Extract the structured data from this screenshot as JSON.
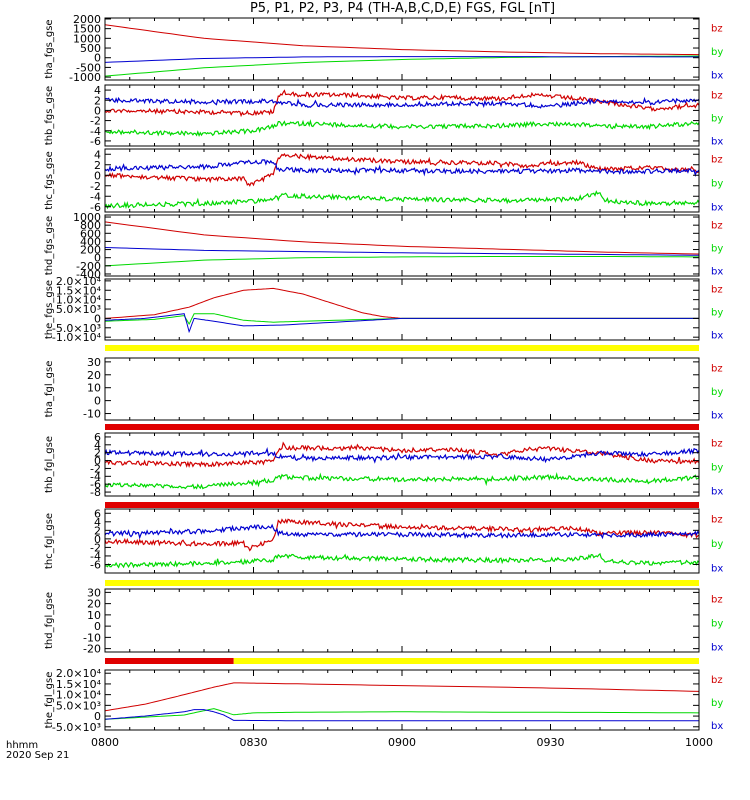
{
  "title": "P5, P1, P2, P3, P4 (TH-A,B,C,D,E) FGS, FGL [nT]",
  "footer": {
    "label": "hhmm",
    "date": "2020 Sep 21"
  },
  "colors": {
    "bz": "#d00000",
    "by": "#00d800",
    "bx": "#0000d0",
    "flag_yellow": "#ffff00",
    "flag_red": "#e00000"
  },
  "chart_data": {
    "type": "line",
    "x_ticks": [
      "0800",
      "0830",
      "0900",
      "0930",
      "1000"
    ],
    "xlim": [
      "08:00",
      "10:00"
    ],
    "legend": [
      "bz",
      "by",
      "bx"
    ],
    "panels": [
      {
        "ylabel": "tha_fgs_gse",
        "yticks": [
          "-1000",
          "-500",
          "0",
          "500",
          "1000",
          "1500",
          "2000"
        ],
        "ytick_values": [
          -1000,
          -500,
          0,
          500,
          1000,
          1500,
          2000
        ],
        "ylim": [
          -1150,
          2050
        ],
        "series": [
          {
            "name": "bz",
            "x": [
              0,
              20,
              40,
              60,
              80,
              100,
              120
            ],
            "y": [
              1700,
              1000,
              620,
              420,
              300,
              210,
              160
            ]
          },
          {
            "name": "by",
            "x": [
              0,
              20,
              40,
              60,
              80,
              100,
              120
            ],
            "y": [
              -950,
              -520,
              -250,
              -90,
              10,
              60,
              90
            ]
          },
          {
            "name": "bx",
            "x": [
              0,
              20,
              40,
              60,
              80,
              100,
              120
            ],
            "y": [
              -240,
              -40,
              40,
              60,
              60,
              50,
              40
            ]
          }
        ]
      },
      {
        "ylabel": "thb_fgs_gse",
        "yticks": [
          "-6",
          "-4",
          "-2",
          "0",
          "2",
          "4"
        ],
        "ytick_values": [
          -6,
          -4,
          -2,
          0,
          2,
          4
        ],
        "ylim": [
          -7,
          5
        ],
        "series": [
          {
            "name": "bz",
            "x": [
              0,
              30,
              34,
              35,
              36,
              37,
              50,
              60,
              70,
              80,
              85,
              90,
              100,
              110,
              120
            ],
            "y": [
              0,
              -0.5,
              -0.3,
              2.5,
              3.8,
              3.2,
              3.0,
              2.4,
              2.6,
              2.3,
              3.0,
              2.8,
              1.8,
              0.3,
              1.0
            ]
          },
          {
            "name": "by",
            "x": [
              0,
              20,
              30,
              34,
              35,
              40,
              60,
              80,
              90,
              100,
              110,
              120
            ],
            "y": [
              -4.2,
              -4.6,
              -4.0,
              -3.2,
              -2.6,
              -2.6,
              -3.2,
              -3.0,
              -2.6,
              -3.0,
              -3.2,
              -2.4
            ]
          },
          {
            "name": "bx",
            "x": [
              0,
              20,
              30,
              34,
              35,
              40,
              60,
              80,
              90,
              100,
              110,
              120
            ],
            "y": [
              2.0,
              1.7,
              1.8,
              1.9,
              1.6,
              1.0,
              1.2,
              1.4,
              0.8,
              2.0,
              1.5,
              2.2
            ]
          }
        ]
      },
      {
        "ylabel": "thc_fgs_gse",
        "yticks": [
          "-6",
          "-4",
          "-2",
          "0",
          "2",
          "4"
        ],
        "ytick_values": [
          -6,
          -4,
          -2,
          0,
          2,
          4
        ],
        "ylim": [
          -7,
          5
        ],
        "series": [
          {
            "name": "bz",
            "x": [
              0,
              20,
              28,
              29,
              34,
              35,
              36,
              50,
              60,
              80,
              85,
              90,
              95,
              100,
              110,
              120
            ],
            "y": [
              0,
              -0.8,
              -0.6,
              -2.0,
              0.2,
              3.2,
              3.8,
              3.0,
              2.6,
              2.3,
              1.8,
              2.2,
              2.5,
              1.2,
              1.4,
              0.8
            ]
          },
          {
            "name": "by",
            "x": [
              0,
              20,
              28,
              34,
              35,
              40,
              60,
              80,
              95,
              100,
              101,
              110,
              120
            ],
            "y": [
              -5.8,
              -5.4,
              -5.0,
              -4.7,
              -3.8,
              -4.0,
              -4.6,
              -4.8,
              -4.6,
              -3.2,
              -4.8,
              -5.4,
              -5.2
            ]
          },
          {
            "name": "bx",
            "x": [
              0,
              20,
              28,
              34,
              35,
              40,
              60,
              80,
              95,
              100,
              110,
              120
            ],
            "y": [
              1.2,
              1.6,
              2.4,
              2.6,
              1.2,
              0.9,
              0.9,
              0.7,
              0.9,
              0.7,
              0.8,
              1.0
            ]
          }
        ]
      },
      {
        "ylabel": "thd_fgs_gse",
        "yticks": [
          "-400",
          "-200",
          "0",
          "200",
          "400",
          "600",
          "800",
          "1000"
        ],
        "ytick_values": [
          -400,
          -200,
          0,
          200,
          400,
          600,
          800,
          1000
        ],
        "ylim": [
          -450,
          1050
        ],
        "series": [
          {
            "name": "bz",
            "x": [
              0,
              20,
              40,
              60,
              80,
              100,
              120
            ],
            "y": [
              880,
              560,
              390,
              280,
              210,
              140,
              90
            ]
          },
          {
            "name": "by",
            "x": [
              0,
              20,
              40,
              60,
              80,
              100,
              120
            ],
            "y": [
              -200,
              -60,
              0,
              20,
              30,
              30,
              20
            ]
          },
          {
            "name": "bx",
            "x": [
              0,
              20,
              40,
              60,
              80,
              100,
              120
            ],
            "y": [
              250,
              180,
              150,
              120,
              100,
              80,
              60
            ]
          }
        ]
      },
      {
        "ylabel": "the_fgs_gse",
        "yticks": [
          "-1.0×10⁴",
          "-5.0×10³",
          "0",
          "5.0×10³",
          "1.0×10⁴",
          "1.5×10⁴",
          "2.0×10⁴"
        ],
        "ytick_values": [
          -10000,
          -5000,
          0,
          5000,
          10000,
          15000,
          20000
        ],
        "ylim": [
          -11500,
          21000
        ],
        "series": [
          {
            "name": "bz",
            "x": [
              0,
              10,
              17,
              22,
              28,
              34,
              40,
              46,
              52,
              56,
              60,
              120
            ],
            "y": [
              0,
              2000,
              6000,
              11000,
              15000,
              16000,
              13000,
              8000,
              3000,
              1000,
              0,
              0
            ]
          },
          {
            "name": "by",
            "x": [
              0,
              10,
              16,
              17,
              18,
              22,
              28,
              34,
              40,
              60,
              120
            ],
            "y": [
              -1500,
              -500,
              1500,
              -3000,
              2500,
              2500,
              -1000,
              -2000,
              -1500,
              0,
              0
            ]
          },
          {
            "name": "bx",
            "x": [
              0,
              8,
              16,
              17,
              18,
              22,
              28,
              36,
              50,
              60,
              120
            ],
            "y": [
              -1000,
              0,
              2500,
              -7000,
              0,
              -1500,
              -4000,
              -3500,
              -1500,
              0,
              0
            ]
          }
        ]
      },
      {
        "ylabel": "tha_fgl_gse",
        "yticks": [
          "-10",
          "0",
          "10",
          "20",
          "30"
        ],
        "ytick_values": [
          -10,
          0,
          10,
          20,
          30
        ],
        "ylim": [
          -15,
          33
        ],
        "series": []
      },
      {
        "ylabel": "thb_fgl_gse",
        "yticks": [
          "-8",
          "-6",
          "-4",
          "-2",
          "0",
          "2",
          "4",
          "6"
        ],
        "ytick_values": [
          -8,
          -6,
          -4,
          -2,
          0,
          2,
          4,
          6
        ],
        "ylim": [
          -9,
          7
        ],
        "series": [
          {
            "name": "bz",
            "x": [
              0,
              20,
              30,
              34,
              35,
              36,
              37,
              50,
              60,
              70,
              80,
              85,
              90,
              100,
              110,
              120
            ],
            "y": [
              -0.5,
              -1.0,
              -0.5,
              -0.3,
              2.5,
              4.0,
              3.2,
              3.2,
              2.6,
              2.8,
              1.5,
              2.8,
              3.0,
              1.8,
              0.0,
              -0.5
            ]
          },
          {
            "name": "by",
            "x": [
              0,
              20,
              30,
              34,
              35,
              40,
              60,
              80,
              90,
              100,
              110,
              120
            ],
            "y": [
              -6.2,
              -6.6,
              -5.6,
              -5.0,
              -4.0,
              -4.4,
              -4.8,
              -4.6,
              -4.2,
              -4.8,
              -5.2,
              -4.2
            ]
          },
          {
            "name": "bx",
            "x": [
              0,
              20,
              30,
              34,
              35,
              40,
              60,
              80,
              90,
              100,
              110,
              120
            ],
            "y": [
              2.0,
              1.6,
              1.8,
              1.9,
              1.0,
              0.5,
              0.8,
              1.0,
              0.2,
              2.0,
              1.5,
              2.6
            ]
          }
        ]
      },
      {
        "ylabel": "thc_fgl_gse",
        "yticks": [
          "-6",
          "-4",
          "-2",
          "0",
          "2",
          "4",
          "6"
        ],
        "ytick_values": [
          -6,
          -4,
          -2,
          0,
          2,
          4,
          6
        ],
        "ylim": [
          -8,
          7
        ],
        "series": [
          {
            "name": "bz",
            "x": [
              0,
              20,
              28,
              29,
              34,
              35,
              36,
              50,
              60,
              80,
              85,
              90,
              95,
              100,
              110,
              120
            ],
            "y": [
              -0.5,
              -1.2,
              -1.0,
              -2.4,
              0.0,
              3.8,
              4.2,
              3.2,
              2.8,
              2.3,
              2.0,
              2.5,
              2.6,
              1.2,
              1.5,
              0.8
            ]
          },
          {
            "name": "by",
            "x": [
              0,
              20,
              28,
              34,
              35,
              40,
              60,
              80,
              95,
              100,
              101,
              110,
              120
            ],
            "y": [
              -6.2,
              -5.8,
              -5.4,
              -5.0,
              -4.0,
              -4.3,
              -4.8,
              -5.0,
              -4.8,
              -3.6,
              -5.2,
              -5.8,
              -5.5
            ]
          },
          {
            "name": "bx",
            "x": [
              0,
              20,
              28,
              34,
              35,
              40,
              60,
              80,
              95,
              100,
              110,
              120
            ],
            "y": [
              1.2,
              1.8,
              2.6,
              2.8,
              1.4,
              1.0,
              1.0,
              0.8,
              1.0,
              0.8,
              1.0,
              1.2
            ]
          }
        ]
      },
      {
        "ylabel": "thd_fgl_gse",
        "yticks": [
          "-20",
          "-10",
          "0",
          "10",
          "20",
          "30"
        ],
        "ytick_values": [
          -20,
          -10,
          0,
          10,
          20,
          30
        ],
        "ylim": [
          -23,
          33
        ],
        "series": []
      },
      {
        "ylabel": "the_fgl_gse",
        "yticks": [
          "-5.0×10³",
          "0",
          "5.0×10³",
          "1.0×10⁴",
          "1.5×10⁴",
          "2.0×10⁴"
        ],
        "ytick_values": [
          -5000,
          0,
          5000,
          10000,
          15000,
          20000
        ],
        "ylim": [
          -6500,
          21500
        ],
        "series": [
          {
            "name": "bz",
            "x": [
              0,
              8,
              16,
              22,
              26,
              40,
              60,
              80,
              100,
              120
            ],
            "y": [
              2500,
              5500,
              10000,
              13500,
              15500,
              15000,
              14200,
              13500,
              12600,
              11500
            ]
          },
          {
            "name": "by",
            "x": [
              0,
              8,
              16,
              22,
              26,
              30,
              40,
              60,
              80,
              100,
              120
            ],
            "y": [
              -1500,
              -500,
              500,
              3500,
              600,
              1500,
              1800,
              2000,
              1800,
              1700,
              1500
            ]
          },
          {
            "name": "bx",
            "x": [
              0,
              8,
              16,
              18,
              20,
              22,
              24,
              26,
              40,
              60,
              120
            ],
            "y": [
              -1500,
              0,
              2000,
              3000,
              3000,
              2000,
              500,
              -2000,
              -2200,
              -2200,
              -2200
            ]
          }
        ]
      }
    ]
  }
}
